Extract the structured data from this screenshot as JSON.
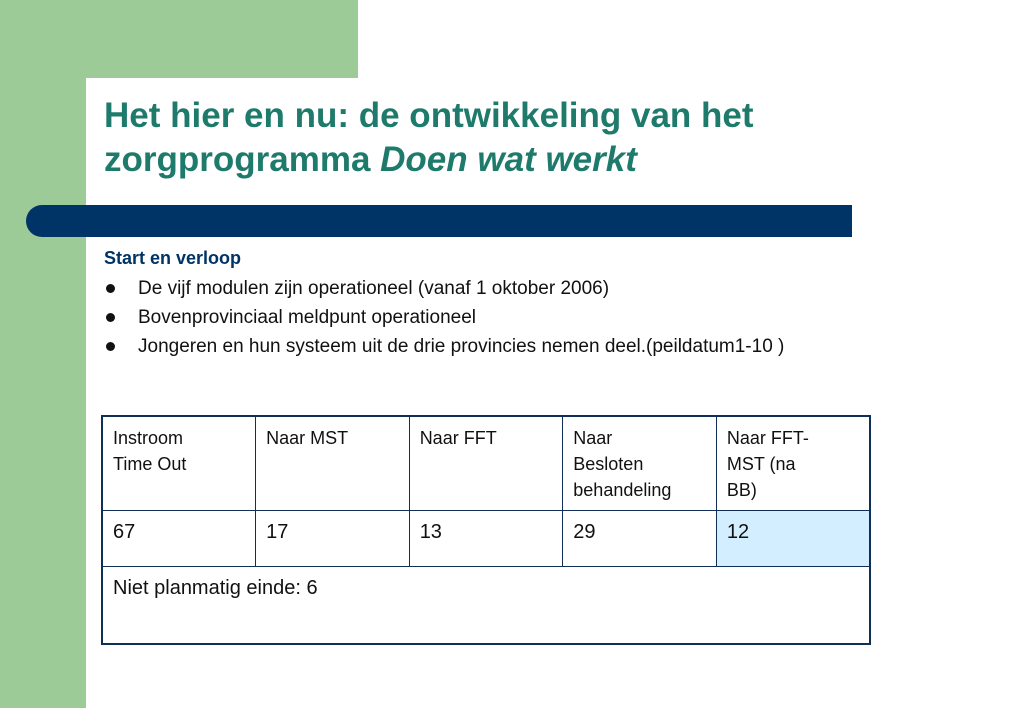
{
  "slide": {
    "title": {
      "line1": "Het hier en nu: de ontwikkeling van het",
      "line2_plain": "zorgprogramma ",
      "line2_italic": "Doen wat werkt"
    },
    "section_heading": "Start en verloop",
    "bullets": [
      "De vijf modulen zijn operationeel (vanaf 1 oktober 2006)",
      "Bovenprovinciaal meldpunt operationeel",
      "Jongeren en hun systeem uit de drie provincies nemen deel.(peildatum1-10 )"
    ],
    "table": {
      "headers": [
        [
          "Instroom",
          "Time Out"
        ],
        [
          "Naar MST"
        ],
        [
          "Naar FFT"
        ],
        [
          "Naar",
          "Besloten",
          "behandeling"
        ],
        [
          "Naar FFT-",
          "MST (na",
          "BB)"
        ]
      ],
      "values": [
        "67",
        "17",
        "13",
        "29",
        "12"
      ],
      "note": "Niet planmatig einde: 6"
    }
  },
  "colors": {
    "green_accent": "#9dcb97",
    "title_color": "#1e7b6c",
    "bar_color": "#003366",
    "highlight_cell": "#d3eefe"
  }
}
